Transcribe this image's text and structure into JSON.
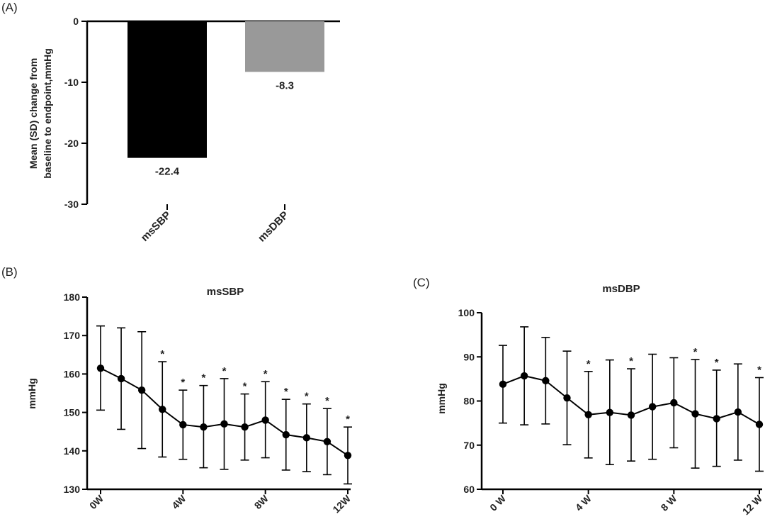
{
  "chart_data": [
    {
      "panel": "(A)",
      "type": "bar",
      "title": "",
      "ylabel": "Mean (SD) change from baseline to endpoint,mmHg",
      "ylabel_lines": [
        "Mean (SD) change from",
        "baseline to endpoint,mmHg"
      ],
      "ylim": [
        -30,
        0
      ],
      "yticks": [
        0,
        -10,
        -20,
        -30
      ],
      "categories": [
        "msSBP",
        "msDBP"
      ],
      "values": [
        -22.4,
        -8.3
      ],
      "value_labels": [
        "-22.4",
        "-8.3"
      ],
      "colors": [
        "#000000",
        "#999999"
      ]
    },
    {
      "panel": "(B)",
      "type": "line",
      "title": "msSBP",
      "ylabel": "mmHg",
      "ylim": [
        130,
        180
      ],
      "yticks": [
        130,
        140,
        150,
        160,
        170,
        180
      ],
      "xticks": [
        "0W",
        "4W",
        "8W",
        "12W"
      ],
      "x": [
        0,
        1,
        2,
        3,
        4,
        5,
        6,
        7,
        8,
        9,
        10,
        11,
        12
      ],
      "series": [
        {
          "values": [
            161.5,
            158.8,
            155.8,
            150.8,
            146.8,
            146.2,
            147.0,
            146.2,
            148.0,
            144.2,
            143.4,
            142.4,
            138.8
          ],
          "upper": [
            172.5,
            172.0,
            171.0,
            163.2,
            155.8,
            157.0,
            158.8,
            154.8,
            158.0,
            153.4,
            152.2,
            151.0,
            146.2
          ],
          "lower": [
            150.6,
            145.6,
            140.6,
            138.4,
            137.8,
            135.6,
            135.2,
            137.6,
            138.2,
            135.0,
            134.6,
            133.8,
            131.4
          ],
          "significant": [
            false,
            false,
            false,
            true,
            true,
            true,
            true,
            true,
            true,
            true,
            true,
            true,
            true
          ]
        }
      ],
      "marker": "*"
    },
    {
      "panel": "(C)",
      "type": "line",
      "title": "msDBP",
      "ylabel": "mmHg",
      "ylim": [
        60,
        100
      ],
      "yticks": [
        60,
        70,
        80,
        90,
        100
      ],
      "xticks": [
        "0 W",
        "4 W",
        "8 W",
        "12 W"
      ],
      "x": [
        0,
        1,
        2,
        3,
        4,
        5,
        6,
        7,
        8,
        9,
        10,
        11,
        12
      ],
      "series": [
        {
          "values": [
            83.8,
            85.7,
            84.6,
            80.7,
            76.9,
            77.4,
            76.8,
            78.7,
            79.6,
            77.1,
            76.0,
            77.5,
            74.7
          ],
          "upper": [
            92.6,
            96.8,
            94.4,
            91.3,
            86.7,
            89.3,
            87.3,
            90.6,
            89.8,
            89.4,
            87.0,
            88.4,
            85.3
          ],
          "lower": [
            75.0,
            74.6,
            74.8,
            70.1,
            67.1,
            65.6,
            66.4,
            66.8,
            69.4,
            64.8,
            65.2,
            66.6,
            64.1
          ],
          "significant": [
            false,
            false,
            false,
            false,
            true,
            false,
            true,
            false,
            false,
            true,
            true,
            false,
            true
          ]
        }
      ],
      "marker": "*"
    }
  ]
}
